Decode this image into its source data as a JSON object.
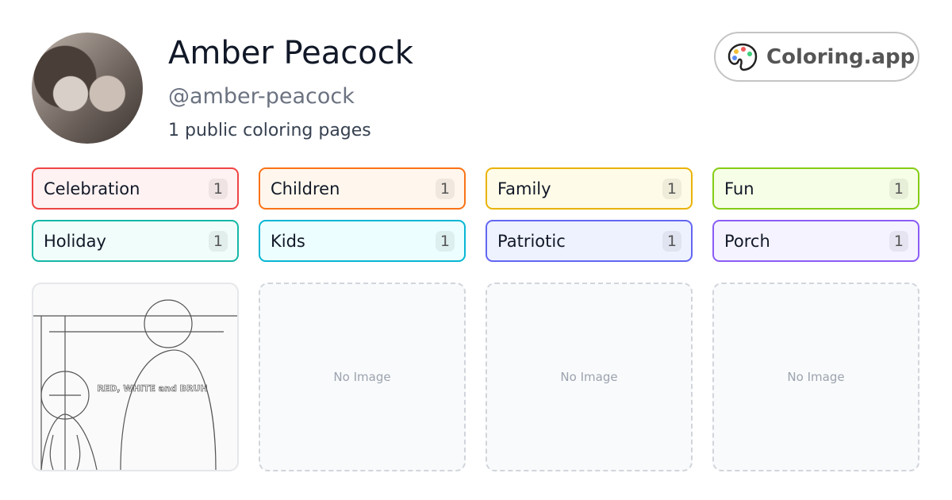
{
  "profile": {
    "name": "Amber Peacock",
    "handle": "@amber-peacock",
    "count_text": "1 public coloring pages"
  },
  "brand": {
    "label": "Coloring.app",
    "icon": "palette-icon"
  },
  "tags": [
    {
      "label": "Celebration",
      "count": "1",
      "color": "#ef4444",
      "bg": "#fef2f2"
    },
    {
      "label": "Children",
      "count": "1",
      "color": "#f97316",
      "bg": "#fff7ed"
    },
    {
      "label": "Family",
      "count": "1",
      "color": "#eab308",
      "bg": "#fefce8"
    },
    {
      "label": "Fun",
      "count": "1",
      "color": "#84cc16",
      "bg": "#f7fee7"
    },
    {
      "label": "Holiday",
      "count": "1",
      "color": "#14b8a6",
      "bg": "#f0fdfa"
    },
    {
      "label": "Kids",
      "count": "1",
      "color": "#06b6d4",
      "bg": "#ecfeff"
    },
    {
      "label": "Patriotic",
      "count": "1",
      "color": "#6366f1",
      "bg": "#eef2ff"
    },
    {
      "label": "Porch",
      "count": "1",
      "color": "#8b5cf6",
      "bg": "#f5f3ff"
    }
  ],
  "cards": [
    {
      "has_image": true,
      "image_text": "RED, WHITE and BRUH"
    },
    {
      "label": "No Image"
    },
    {
      "label": "No Image"
    },
    {
      "label": "No Image"
    }
  ]
}
